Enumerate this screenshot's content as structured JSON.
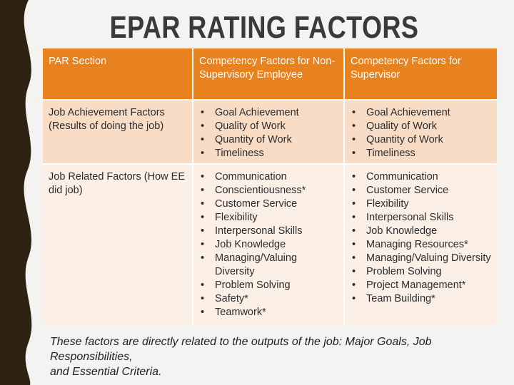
{
  "title": "EPAR RATING FACTORS",
  "table": {
    "headers": [
      "PAR Section",
      "Competency Factors for Non-Supervisory Employee",
      "Competency Factors for Supervisor"
    ],
    "rows": [
      {
        "section": "Job Achievement Factors (Results of doing the job)",
        "non_supervisory": [
          "Goal Achievement",
          "Quality of Work",
          "Quantity of Work",
          "Timeliness"
        ],
        "supervisor": [
          "Goal Achievement",
          "Quality of Work",
          "Quantity of Work",
          "Timeliness"
        ]
      },
      {
        "section": "Job Related Factors (How EE did job)",
        "non_supervisory": [
          "Communication",
          "Conscientiousness*",
          "Customer Service",
          "Flexibility",
          "Interpersonal Skills",
          "Job Knowledge",
          "Managing/Valuing Diversity",
          "Problem Solving",
          "Safety*",
          "Teamwork*"
        ],
        "supervisor": [
          "Communication",
          "Customer Service",
          "Flexibility",
          "Interpersonal Skills",
          "Job Knowledge",
          "Managing Resources*",
          "Managing/Valuing Diversity",
          "Problem Solving",
          "Project Management*",
          "Team Building*"
        ]
      }
    ]
  },
  "footer": {
    "line1": "These factors are directly related to the outputs of the job: Major Goals, Job Responsibilities,",
    "line2": "and Essential Criteria."
  },
  "colors": {
    "header": "#e8821e",
    "row1": "#f9dcc6",
    "row2": "#fcefe6",
    "band": "#2e2313"
  }
}
